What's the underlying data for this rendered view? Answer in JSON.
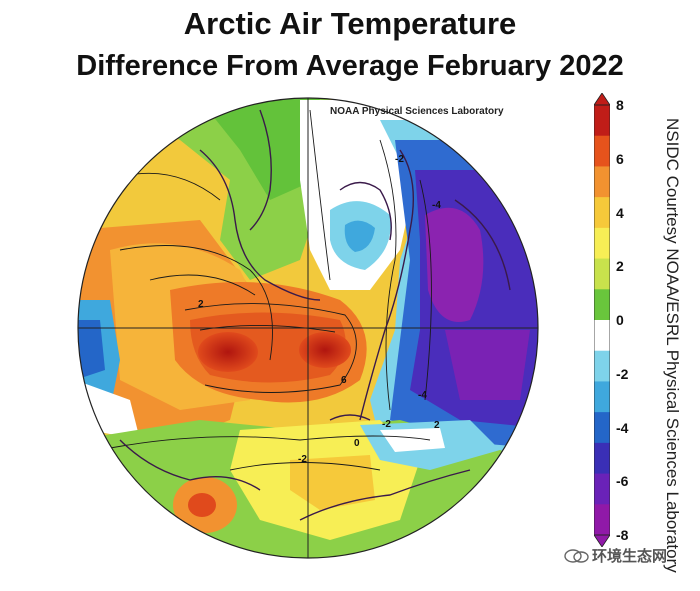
{
  "title_line1": "Arctic Air Temperature",
  "title_line2": "Difference From Average February 2022",
  "map_credit": "NOAA Physical Sciences Laboratory",
  "side_credit": "NSIDC Courtesy NOAA/ESRL Physical Sciences Laboratory",
  "colorbar": {
    "labels": [
      "8",
      "6",
      "4",
      "2",
      "0",
      "-2",
      "-4",
      "-6",
      "-8"
    ],
    "colors": [
      "#c01d18",
      "#e6531c",
      "#f29230",
      "#f6c93a",
      "#f7ee55",
      "#c8e24c",
      "#69c63c",
      "#ffffff",
      "#7ed3ea",
      "#3fa8dd",
      "#2466c8",
      "#3a2fb6",
      "#6a22b8",
      "#9019a8"
    ]
  },
  "contour_labels": [
    "-2",
    "-4",
    "-4",
    "-2",
    "2",
    "6",
    "2",
    "-2",
    "0"
  ],
  "watermark": "环境生态网",
  "icons": {
    "watermark_icon": "wechat-icon"
  }
}
